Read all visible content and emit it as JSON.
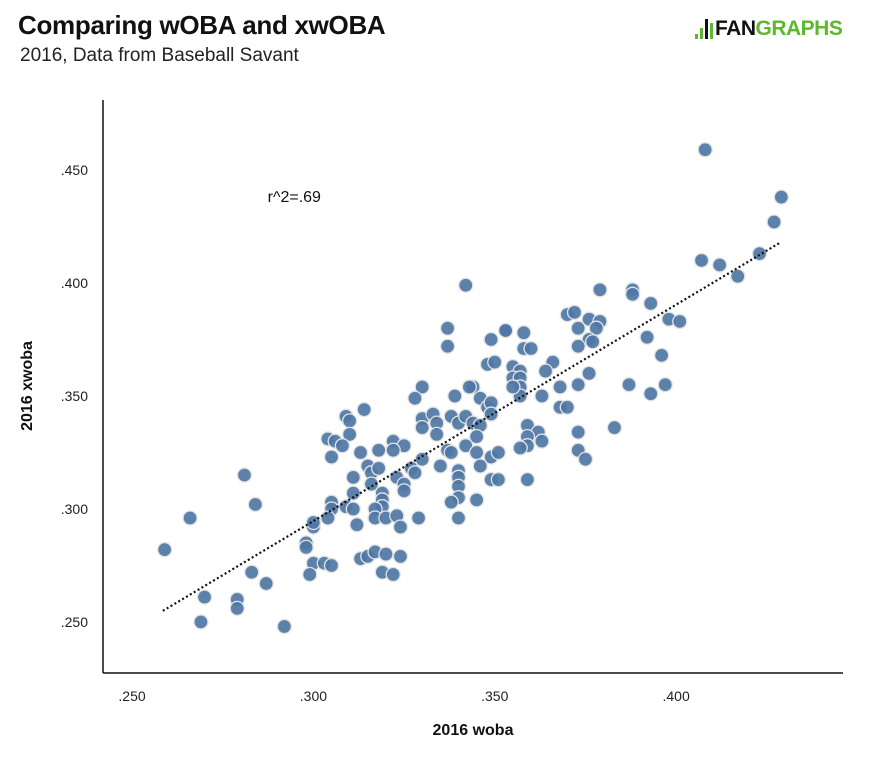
{
  "header": {
    "title": "Comparing wOBA and xwOBA",
    "subtitle": "2016, Data from Baseball Savant",
    "logo_text": "FANGRAPHS",
    "logo_fan": "FAN",
    "logo_graphs": "GRAPHS"
  },
  "colors": {
    "dot": "#4e77a5",
    "logo_green": "#5cb82e",
    "trendline": "#111111"
  },
  "chart_data": {
    "type": "scatter",
    "title": "Comparing wOBA and xwOBA",
    "subtitle": "2016, Data from Baseball Savant",
    "xlabel": "2016 woba",
    "ylabel": "2016 xwoba",
    "xlim": [
      0.242,
      0.446
    ],
    "ylim": [
      0.2274,
      0.481
    ],
    "x_ticks": [
      0.25,
      0.3,
      0.35,
      0.4
    ],
    "x_tick_labels": [
      ".250",
      ".300",
      ".350",
      ".400"
    ],
    "y_ticks": [
      0.25,
      0.3,
      0.35,
      0.4,
      0.45
    ],
    "y_tick_labels": [
      ".250",
      ".300",
      ".350",
      ".400",
      ".450"
    ],
    "grid": false,
    "annotation": {
      "text": "r^2=.69",
      "x": 0.294,
      "y": 0.438
    },
    "trendline": {
      "style": "dotted",
      "x": [
        0.2585,
        0.4288
      ],
      "y": [
        0.2549,
        0.418
      ]
    },
    "points": [
      [
        0.259,
        0.282
      ],
      [
        0.266,
        0.296
      ],
      [
        0.27,
        0.261
      ],
      [
        0.269,
        0.25
      ],
      [
        0.281,
        0.315
      ],
      [
        0.284,
        0.302
      ],
      [
        0.283,
        0.272
      ],
      [
        0.287,
        0.267
      ],
      [
        0.279,
        0.26
      ],
      [
        0.279,
        0.256
      ],
      [
        0.292,
        0.248
      ],
      [
        0.342,
        0.399
      ],
      [
        0.337,
        0.38
      ],
      [
        0.337,
        0.372
      ],
      [
        0.353,
        0.379
      ],
      [
        0.349,
        0.375
      ],
      [
        0.348,
        0.364
      ],
      [
        0.35,
        0.365
      ],
      [
        0.33,
        0.354
      ],
      [
        0.328,
        0.349
      ],
      [
        0.339,
        0.35
      ],
      [
        0.344,
        0.354
      ],
      [
        0.343,
        0.354
      ],
      [
        0.314,
        0.344
      ],
      [
        0.309,
        0.341
      ],
      [
        0.31,
        0.339
      ],
      [
        0.31,
        0.333
      ],
      [
        0.304,
        0.331
      ],
      [
        0.306,
        0.33
      ],
      [
        0.308,
        0.328
      ],
      [
        0.305,
        0.323
      ],
      [
        0.313,
        0.325
      ],
      [
        0.318,
        0.326
      ],
      [
        0.322,
        0.33
      ],
      [
        0.325,
        0.328
      ],
      [
        0.322,
        0.326
      ],
      [
        0.33,
        0.34
      ],
      [
        0.333,
        0.342
      ],
      [
        0.334,
        0.338
      ],
      [
        0.33,
        0.336
      ],
      [
        0.338,
        0.341
      ],
      [
        0.34,
        0.338
      ],
      [
        0.334,
        0.333
      ],
      [
        0.342,
        0.341
      ],
      [
        0.344,
        0.338
      ],
      [
        0.346,
        0.349
      ],
      [
        0.348,
        0.345
      ],
      [
        0.349,
        0.347
      ],
      [
        0.346,
        0.337
      ],
      [
        0.349,
        0.342
      ],
      [
        0.345,
        0.332
      ],
      [
        0.337,
        0.326
      ],
      [
        0.338,
        0.325
      ],
      [
        0.342,
        0.328
      ],
      [
        0.345,
        0.325
      ],
      [
        0.349,
        0.323
      ],
      [
        0.351,
        0.325
      ],
      [
        0.33,
        0.322
      ],
      [
        0.335,
        0.319
      ],
      [
        0.34,
        0.317
      ],
      [
        0.34,
        0.314
      ],
      [
        0.34,
        0.31
      ],
      [
        0.34,
        0.305
      ],
      [
        0.338,
        0.303
      ],
      [
        0.346,
        0.319
      ],
      [
        0.349,
        0.313
      ],
      [
        0.351,
        0.313
      ],
      [
        0.345,
        0.304
      ],
      [
        0.34,
        0.296
      ],
      [
        0.327,
        0.318
      ],
      [
        0.328,
        0.316
      ],
      [
        0.315,
        0.319
      ],
      [
        0.316,
        0.316
      ],
      [
        0.318,
        0.318
      ],
      [
        0.316,
        0.311
      ],
      [
        0.323,
        0.314
      ],
      [
        0.325,
        0.311
      ],
      [
        0.325,
        0.308
      ],
      [
        0.311,
        0.314
      ],
      [
        0.311,
        0.307
      ],
      [
        0.319,
        0.307
      ],
      [
        0.319,
        0.304
      ],
      [
        0.319,
        0.301
      ],
      [
        0.317,
        0.3
      ],
      [
        0.317,
        0.296
      ],
      [
        0.32,
        0.296
      ],
      [
        0.323,
        0.297
      ],
      [
        0.329,
        0.296
      ],
      [
        0.324,
        0.292
      ],
      [
        0.305,
        0.303
      ],
      [
        0.305,
        0.3
      ],
      [
        0.309,
        0.301
      ],
      [
        0.311,
        0.3
      ],
      [
        0.304,
        0.296
      ],
      [
        0.3,
        0.292
      ],
      [
        0.3,
        0.294
      ],
      [
        0.312,
        0.293
      ],
      [
        0.298,
        0.285
      ],
      [
        0.298,
        0.283
      ],
      [
        0.313,
        0.278
      ],
      [
        0.315,
        0.279
      ],
      [
        0.317,
        0.281
      ],
      [
        0.32,
        0.28
      ],
      [
        0.324,
        0.279
      ],
      [
        0.319,
        0.272
      ],
      [
        0.322,
        0.271
      ],
      [
        0.3,
        0.276
      ],
      [
        0.303,
        0.276
      ],
      [
        0.305,
        0.275
      ],
      [
        0.299,
        0.271
      ],
      [
        0.408,
        0.459
      ],
      [
        0.429,
        0.438
      ],
      [
        0.427,
        0.427
      ],
      [
        0.423,
        0.413
      ],
      [
        0.407,
        0.41
      ],
      [
        0.412,
        0.408
      ],
      [
        0.417,
        0.403
      ],
      [
        0.379,
        0.397
      ],
      [
        0.388,
        0.397
      ],
      [
        0.388,
        0.395
      ],
      [
        0.393,
        0.391
      ],
      [
        0.37,
        0.386
      ],
      [
        0.372,
        0.387
      ],
      [
        0.376,
        0.384
      ],
      [
        0.379,
        0.383
      ],
      [
        0.378,
        0.38
      ],
      [
        0.373,
        0.38
      ],
      [
        0.398,
        0.384
      ],
      [
        0.401,
        0.383
      ],
      [
        0.392,
        0.376
      ],
      [
        0.376,
        0.375
      ],
      [
        0.377,
        0.374
      ],
      [
        0.373,
        0.372
      ],
      [
        0.396,
        0.368
      ],
      [
        0.353,
        0.379
      ],
      [
        0.358,
        0.378
      ],
      [
        0.358,
        0.371
      ],
      [
        0.36,
        0.371
      ],
      [
        0.355,
        0.363
      ],
      [
        0.357,
        0.361
      ],
      [
        0.355,
        0.358
      ],
      [
        0.357,
        0.358
      ],
      [
        0.357,
        0.354
      ],
      [
        0.357,
        0.35
      ],
      [
        0.355,
        0.354
      ],
      [
        0.366,
        0.365
      ],
      [
        0.364,
        0.361
      ],
      [
        0.376,
        0.36
      ],
      [
        0.368,
        0.354
      ],
      [
        0.373,
        0.355
      ],
      [
        0.363,
        0.35
      ],
      [
        0.387,
        0.355
      ],
      [
        0.393,
        0.351
      ],
      [
        0.397,
        0.355
      ],
      [
        0.368,
        0.345
      ],
      [
        0.37,
        0.345
      ],
      [
        0.383,
        0.336
      ],
      [
        0.373,
        0.334
      ],
      [
        0.359,
        0.337
      ],
      [
        0.362,
        0.334
      ],
      [
        0.359,
        0.332
      ],
      [
        0.363,
        0.33
      ],
      [
        0.359,
        0.328
      ],
      [
        0.357,
        0.327
      ],
      [
        0.373,
        0.326
      ],
      [
        0.375,
        0.322
      ],
      [
        0.359,
        0.313
      ]
    ]
  }
}
